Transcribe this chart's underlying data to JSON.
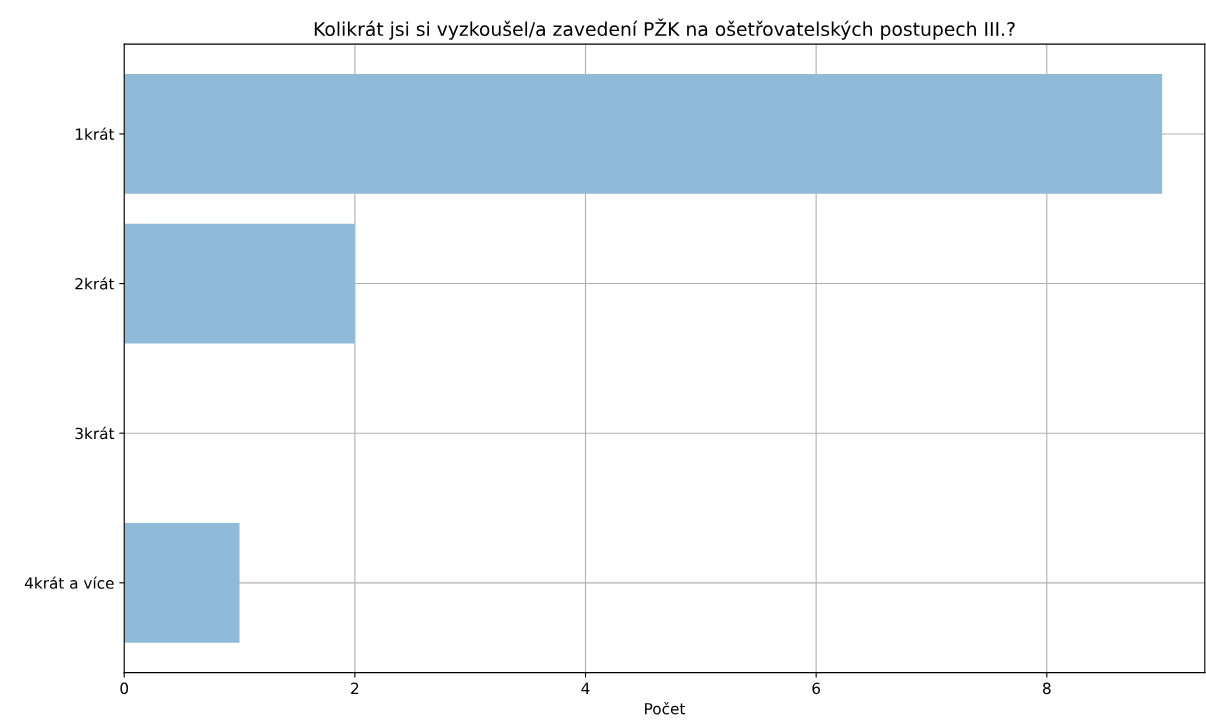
{
  "chart_data": {
    "type": "bar",
    "orientation": "horizontal",
    "title": "Kolikrát jsi si vyzkoušel/a zavedení PŽK na ošetřovatelských postupech III.?",
    "xlabel": "Počet",
    "categories": [
      "1krát",
      "2krát",
      "3krát",
      "4krát a více"
    ],
    "values": [
      9,
      2,
      0,
      1
    ],
    "color": "#8fbbd9",
    "xlim": [
      0,
      9.37
    ],
    "xticks": [
      0,
      2,
      4,
      6,
      8
    ],
    "grid": true
  }
}
